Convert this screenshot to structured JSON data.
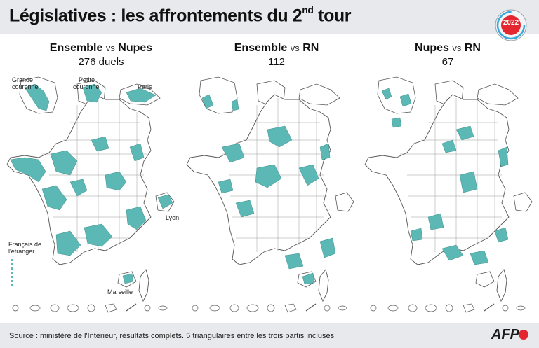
{
  "header": {
    "title_main": "Législatives : les affrontements du 2",
    "title_sup": "nd",
    "title_end": " tour",
    "badge_year": "2022",
    "badge_color": "#e3262f"
  },
  "panels": [
    {
      "party_a": "Ensemble",
      "vs": "vs",
      "party_b": "Nupes",
      "count": "276 duels"
    },
    {
      "party_a": "Ensemble",
      "vs": "vs",
      "party_b": "RN",
      "count": "112"
    },
    {
      "party_a": "Nupes",
      "vs": "vs",
      "party_b": "RN",
      "count": "67"
    }
  ],
  "inset_labels": {
    "grande_couronne_1": "Grande",
    "grande_couronne_2": "couronne",
    "petite_couronne_1": "Petite",
    "petite_couronne_2": "couronne",
    "paris": "Paris",
    "lyon": "Lyon",
    "marseille": "Marseille",
    "etranger_1": "Français de",
    "etranger_2": "l'étranger"
  },
  "colors": {
    "highlight": "#5bb8b4",
    "outline": "#555555",
    "background": "#ffffff",
    "bar": "#e7e9ec"
  },
  "footer": {
    "source": "Source : ministère de l'Intérieur, résultats complets. 5 triangulaires entre les trois partis incluses",
    "logo": "AFP"
  }
}
